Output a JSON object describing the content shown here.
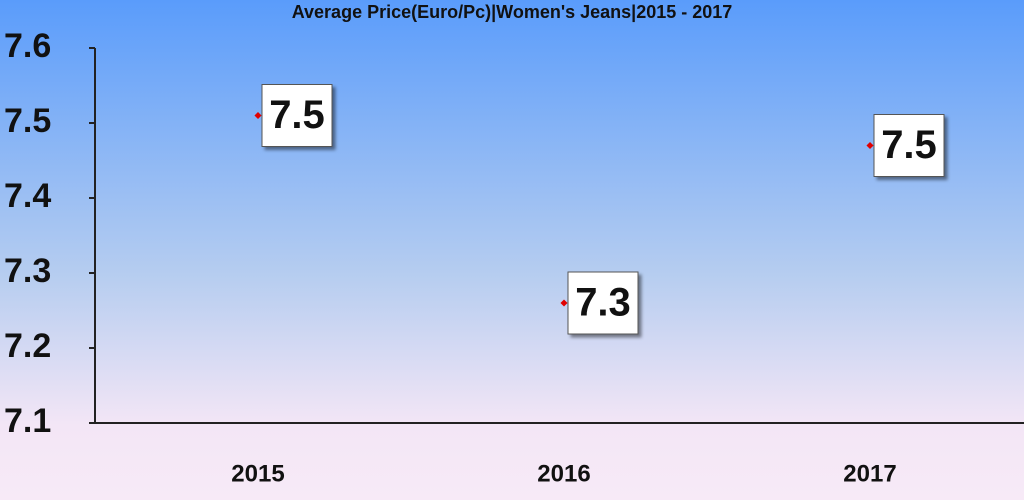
{
  "chart_data": {
    "type": "line",
    "title": "Average Price(Euro/Pc)|Women's Jeans|2015 - 2017",
    "categories": [
      "2015",
      "2016",
      "2017"
    ],
    "series": [
      {
        "color": "#000000",
        "marker_color": "#e00000",
        "values": [
          7.51,
          7.26,
          7.47
        ],
        "value_labels": [
          "7.5",
          "7.3",
          "7.5"
        ]
      }
    ],
    "ylim": [
      7.1,
      7.6
    ],
    "yticks": [
      7.1,
      7.2,
      7.3,
      7.4,
      7.5,
      7.6
    ],
    "grid": false
  }
}
